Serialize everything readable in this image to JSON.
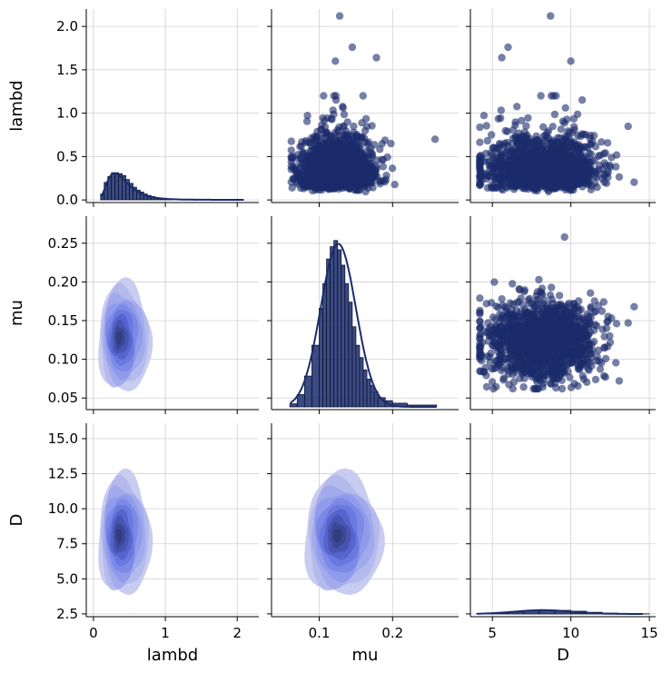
{
  "chart_data": {
    "type": "pairplot",
    "variables": [
      "lambd",
      "mu",
      "D"
    ],
    "xlabels": {
      "lambd": "lambd",
      "mu": "mu",
      "D": "D"
    },
    "ylabels": {
      "lambd": "lambd",
      "mu": "mu",
      "D": "D"
    },
    "colors": {
      "main": "#1a2c6b",
      "kde_levels": [
        "#c3c8ef",
        "#b2b9ec",
        "#a0a9ea",
        "#8e9aea",
        "#7b89e6",
        "#6777de",
        "#5563cc",
        "#4552b0",
        "#3a4894",
        "#323f7c"
      ]
    },
    "axes": {
      "lambd": {
        "ticks": [
          0,
          1,
          2
        ],
        "tick_labels": [
          "0",
          "1",
          "2"
        ],
        "x_range": [
          -0.1,
          2.3
        ],
        "y_ticks": [
          0.0,
          0.5,
          1.0,
          1.5,
          2.0
        ],
        "y_tick_labels": [
          "0.0",
          "0.5",
          "1.0",
          "1.5",
          "2.0"
        ],
        "y_range": [
          -0.03,
          2.2
        ]
      },
      "mu": {
        "ticks": [
          0.1,
          0.2
        ],
        "tick_labels": [
          "0.1",
          "0.2"
        ],
        "x_range": [
          0.035,
          0.29
        ],
        "y_ticks": [
          0.05,
          0.1,
          0.15,
          0.2,
          0.25
        ],
        "y_tick_labels": [
          "0.05",
          "0.10",
          "0.15",
          "0.20",
          "0.25"
        ],
        "y_range": [
          0.035,
          0.285
        ]
      },
      "D": {
        "ticks": [
          5,
          10,
          15
        ],
        "tick_labels": [
          "5",
          "10",
          "15"
        ],
        "x_range": [
          3.6,
          15.4
        ],
        "y_ticks": [
          2.5,
          5.0,
          7.5,
          10.0,
          12.5,
          15.0
        ],
        "y_tick_labels": [
          "2.5",
          "5.0",
          "7.5",
          "10.0",
          "12.5",
          "15.0"
        ],
        "y_range": [
          2.3,
          16.1
        ]
      }
    },
    "distributions": {
      "lambd": {
        "median": 0.35,
        "spread": 0.18,
        "min": 0.08,
        "max": 2.12
      },
      "mu": {
        "mean": 0.125,
        "sd": 0.026,
        "min": 0.062,
        "max": 0.258
      },
      "D": {
        "mean": 8.2,
        "sd": 1.7,
        "min": 4.2,
        "max": 14.6
      }
    },
    "histograms": {
      "lambd": {
        "bin_edges": [
          0.1,
          0.15,
          0.2,
          0.25,
          0.3,
          0.35,
          0.4,
          0.45,
          0.5,
          0.55,
          0.6,
          0.65,
          0.7,
          0.75,
          0.8,
          0.85,
          0.9,
          0.95,
          1.0,
          1.05,
          1.1
        ],
        "density": [
          0.06,
          0.18,
          0.24,
          0.28,
          0.28,
          0.27,
          0.25,
          0.21,
          0.17,
          0.13,
          0.1,
          0.08,
          0.06,
          0.045,
          0.035,
          0.025,
          0.018,
          0.012,
          0.008,
          0.005
        ]
      },
      "mu": {
        "bin_edges": [
          0.06,
          0.07,
          0.08,
          0.09,
          0.1,
          0.105,
          0.11,
          0.115,
          0.12,
          0.125,
          0.13,
          0.135,
          0.14,
          0.145,
          0.15,
          0.155,
          0.16,
          0.165,
          0.17,
          0.175,
          0.18,
          0.19,
          0.2,
          0.22,
          0.26
        ],
        "density": [
          0.005,
          0.02,
          0.05,
          0.1,
          0.16,
          0.2,
          0.24,
          0.26,
          0.27,
          0.255,
          0.23,
          0.2,
          0.17,
          0.13,
          0.1,
          0.08,
          0.06,
          0.045,
          0.035,
          0.025,
          0.015,
          0.01,
          0.006,
          0.003
        ]
      },
      "D": {
        "bin_edges": [
          4,
          5,
          6,
          7,
          8,
          9,
          10,
          11,
          12,
          13,
          14,
          15
        ],
        "density": [
          0.01,
          0.02,
          0.04,
          0.06,
          0.07,
          0.065,
          0.05,
          0.03,
          0.015,
          0.008,
          0.003
        ]
      }
    }
  }
}
